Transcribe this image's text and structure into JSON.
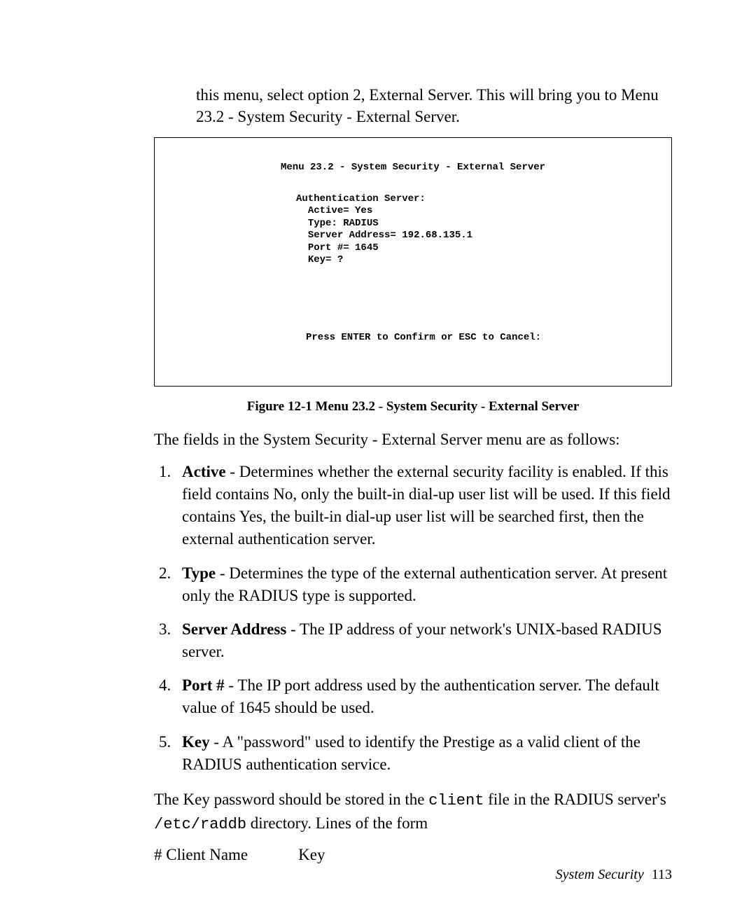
{
  "intro": "this menu, select option 2, External Server. This will bring you to Menu 23.2 - System Security - External Server.",
  "terminal": {
    "title": "Menu 23.2 - System Security - External Server",
    "section_header": "Authentication Server:",
    "lines": {
      "active": "Active= Yes",
      "type": "Type: RADIUS",
      "server_address": "Server Address= 192.68.135.1",
      "port": "Port #= 1645",
      "key": "Key= ?"
    },
    "footer": "Press ENTER to Confirm or ESC to Cancel:"
  },
  "figure_caption": "Figure 12-1 Menu 23.2 - System Security - External Server",
  "lead": "The fields in the System Security - External Server menu are as follows:",
  "fields": [
    {
      "term": "Active",
      "desc": " - Determines whether the external security facility is enabled. If this field contains No, only the built-in dial-up user list will be used. If this field contains Yes, the built-in dial-up user list will be searched first, then the external authentication server."
    },
    {
      "term": "Type",
      "desc": " - Determines the type of the external authentication server. At present only the RADIUS type is supported."
    },
    {
      "term": "Server Address",
      "desc": " - The IP address of your network's UNIX-based RADIUS server."
    },
    {
      "term": "Port #",
      "desc": " - The IP port address used by the authentication server. The default value of 1645 should be used."
    },
    {
      "term": "Key",
      "desc": " - A \"password\" used to identify the Prestige as a valid client of the RADIUS authentication service."
    }
  ],
  "after_list": {
    "pre1": "The Key password should be stored in the ",
    "code1": "client",
    "mid1": " file in the RADIUS server's ",
    "code2": "/etc/raddb",
    "post1": " directory. Lines of the form"
  },
  "client_key": {
    "col1": "# Client Name",
    "col2": "Key"
  },
  "footer": {
    "section": "System Security",
    "page": "113"
  },
  "colors": {
    "text": "#000000",
    "background": "#ffffff",
    "border": "#000000"
  }
}
